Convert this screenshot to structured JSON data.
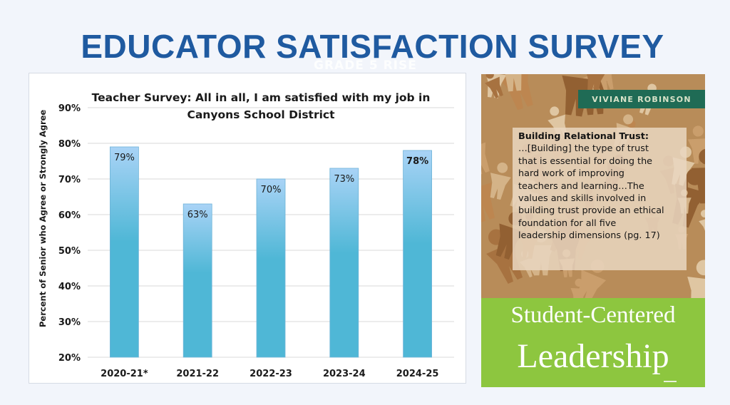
{
  "slide": {
    "title": "EDUCATOR SATISFACTION SURVEY",
    "ghost_text": "GRADE 5 RISE"
  },
  "chart_data": {
    "type": "bar",
    "title": "Teacher Survey: All in all, I am satisfied with my job in Canyons School District",
    "title_lines": [
      "Teacher Survey: All in all, I am satisfied with my job in",
      "Canyons School District"
    ],
    "ylabel": "Percent of Senior who Agree or Strongly Agree",
    "xlabel": "",
    "categories": [
      "2020-21*",
      "2021-22",
      "2022-23",
      "2023-24",
      "2024-25"
    ],
    "values": [
      79,
      63,
      70,
      73,
      78
    ],
    "data_labels": [
      "79%",
      "63%",
      "70%",
      "73%",
      "78%"
    ],
    "ylim": [
      20,
      90
    ],
    "yticks": [
      20,
      30,
      40,
      50,
      60,
      70,
      80,
      90
    ],
    "ytick_labels": [
      "20%",
      "30%",
      "40%",
      "50%",
      "60%",
      "70%",
      "80%",
      "90%"
    ],
    "grid": true,
    "bar_color_top": "#a9d3f6",
    "bar_color_bottom": "#4fb7d6"
  },
  "book": {
    "author": "VIVIANE ROBINSON",
    "quote_title": "Building Relational Trust:",
    "quote_lines": [
      "…[Building] the type of trust",
      "that is essential for doing the",
      "hard work of improving",
      "teachers and learning…The",
      "values and skills involved in",
      "building trust provide an ethical",
      "foundation for all five",
      "leadership dimensions (pg. 17)"
    ],
    "subtitle": "Student-Centered",
    "title": "Leadership",
    "band_color": "#8dc63f",
    "author_band_color": "#1f6b55"
  }
}
